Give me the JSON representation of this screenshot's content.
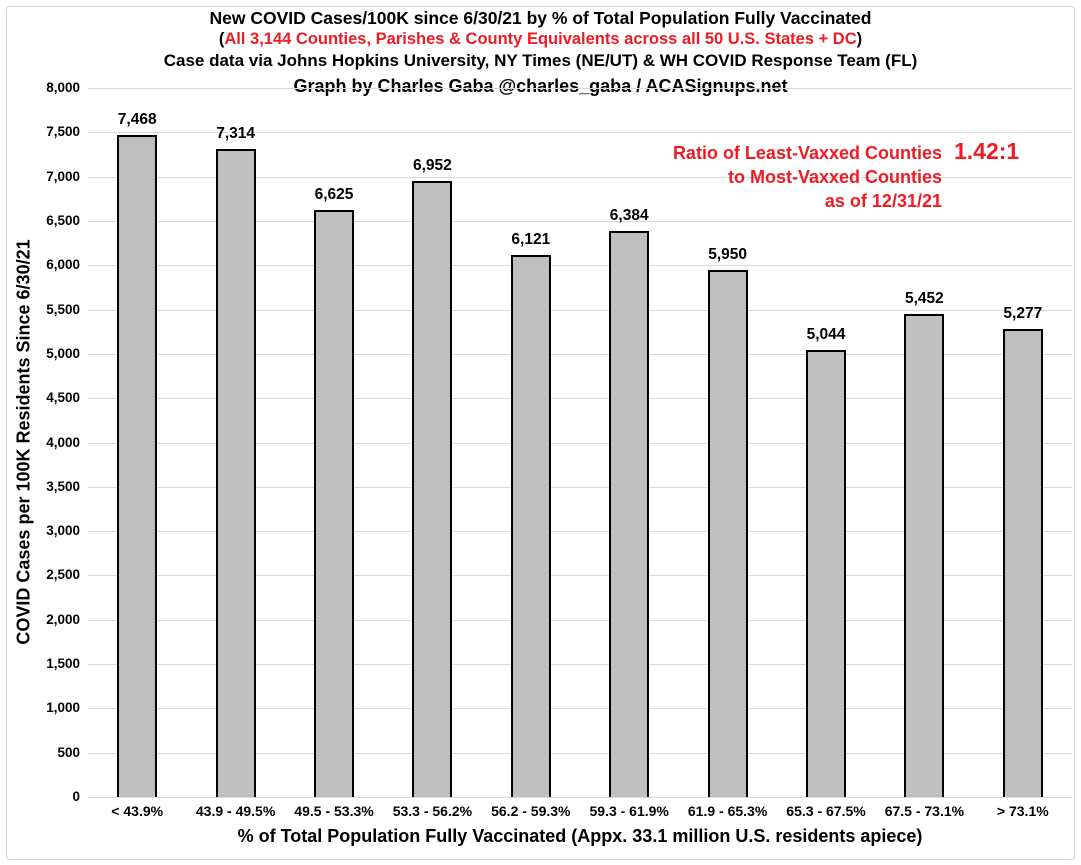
{
  "header": {
    "title": "New COVID Cases/100K since 6/30/21 by % of Total Population Fully Vaccinated",
    "subtitle_paren_open": "(",
    "subtitle": "All 3,144 Counties, Parishes & County Equivalents across all 50 U.S. States + DC",
    "subtitle_paren_close": ")",
    "source_line": "Case data via Johns Hopkins University, NY Times (NE/UT) & WH COVID Response Team (FL)",
    "credit_line": "Graph by Charles Gaba @charles_gaba / ACASignups.net"
  },
  "annotation": {
    "line1": "Ratio of Least-Vaxxed Counties",
    "line2": "to Most-Vaxxed Counties",
    "line3": "as of 12/31/21",
    "ratio": "1.42:1"
  },
  "colors": {
    "accent_red": "#ED1C24",
    "bar_fill": "#BFBFBF",
    "bar_border": "#000000",
    "gridline": "#D9D9D9",
    "frame_border": "#D6D6D6",
    "text": "#000000",
    "background": "#FFFFFF"
  },
  "chart_data": {
    "type": "bar",
    "title": "New COVID Cases/100K since 6/30/21 by % of Total Population Fully Vaccinated",
    "categories": [
      "< 43.9%",
      "43.9 - 49.5%",
      "49.5 - 53.3%",
      "53.3 - 56.2%",
      "56.2 - 59.3%",
      "59.3 - 61.9%",
      "61.9 - 65.3%",
      "65.3 - 67.5%",
      "67.5 - 73.1%",
      "> 73.1%"
    ],
    "values": [
      7468,
      7314,
      6625,
      6952,
      6121,
      6384,
      5950,
      5044,
      5452,
      5277
    ],
    "xlabel": "% of Total Population Fully Vaccinated (Appx. 33.1 million U.S. residents apiece)",
    "ylabel": "COVID Cases per 100K Residents Since 6/30/21",
    "ylim": [
      0,
      8000
    ],
    "ytick_step": 500,
    "grid": "horizontal",
    "legend": "none",
    "data_labels": true
  }
}
